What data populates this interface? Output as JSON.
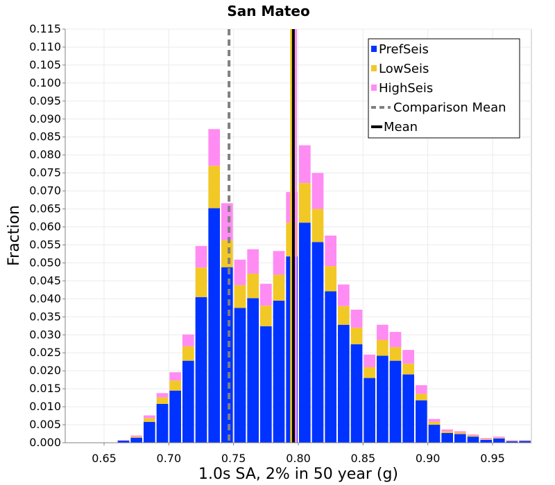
{
  "chart_data": {
    "type": "bar",
    "stacked": true,
    "title": "San Mateo",
    "xlabel": "1.0s SA, 2% in 50 year (g)",
    "ylabel": "Fraction",
    "xlim": [
      0.62,
      0.98
    ],
    "ylim": [
      0.0,
      0.115
    ],
    "x_ticks": [
      "0.65",
      "0.70",
      "0.75",
      "0.80",
      "0.85",
      "0.90",
      "0.95"
    ],
    "x_tick_values": [
      0.65,
      0.7,
      0.75,
      0.8,
      0.85,
      0.9,
      0.95
    ],
    "y_ticks": [
      "0.000",
      "0.005",
      "0.010",
      "0.015",
      "0.020",
      "0.025",
      "0.030",
      "0.035",
      "0.040",
      "0.045",
      "0.050",
      "0.055",
      "0.060",
      "0.065",
      "0.070",
      "0.075",
      "0.080",
      "0.085",
      "0.090",
      "0.095",
      "0.100",
      "0.105",
      "0.110",
      "0.115"
    ],
    "grid": true,
    "legend_position": "top-right",
    "bin_width": 0.01,
    "bin_starts": [
      0.66,
      0.67,
      0.68,
      0.69,
      0.7,
      0.71,
      0.72,
      0.73,
      0.74,
      0.75,
      0.76,
      0.77,
      0.78,
      0.79,
      0.8,
      0.81,
      0.82,
      0.83,
      0.84,
      0.85,
      0.86,
      0.87,
      0.88,
      0.89,
      0.9,
      0.91,
      0.92,
      0.93,
      0.94,
      0.95,
      0.96,
      0.97
    ],
    "series": [
      {
        "name": "PrefSeis",
        "color": "#0033ff",
        "values": [
          0.0006,
          0.0014,
          0.0058,
          0.0108,
          0.0145,
          0.0228,
          0.0405,
          0.0652,
          0.0488,
          0.0375,
          0.0402,
          0.0324,
          0.0395,
          0.0518,
          0.0612,
          0.0558,
          0.0421,
          0.0328,
          0.0274,
          0.018,
          0.0242,
          0.0228,
          0.019,
          0.0118,
          0.005,
          0.0027,
          0.0024,
          0.0017,
          0.0008,
          0.0012,
          0.0004,
          0.0005
        ]
      },
      {
        "name": "LowSeis",
        "color": "#f2c826",
        "values": [
          0.0,
          0.0003,
          0.001,
          0.0018,
          0.0028,
          0.004,
          0.0082,
          0.0118,
          0.0075,
          0.0063,
          0.0068,
          0.0057,
          0.0072,
          0.0094,
          0.011,
          0.0092,
          0.007,
          0.0052,
          0.0046,
          0.003,
          0.0044,
          0.0038,
          0.003,
          0.0018,
          0.0008,
          0.0005,
          0.0004,
          0.0003,
          0.0002,
          0.0002,
          0.0001,
          0.0001
        ]
      },
      {
        "name": "HighSeis",
        "color": "#ff8cf2",
        "values": [
          0.0001,
          0.0003,
          0.0008,
          0.0012,
          0.0023,
          0.0033,
          0.006,
          0.0102,
          0.0103,
          0.0071,
          0.0068,
          0.0061,
          0.0066,
          0.0085,
          0.0105,
          0.01,
          0.0085,
          0.006,
          0.005,
          0.0035,
          0.0042,
          0.0042,
          0.0038,
          0.0024,
          0.0008,
          0.0005,
          0.0004,
          0.0003,
          0.0003,
          0.0003,
          0.0002,
          0.0001
        ]
      }
    ],
    "comparison_mean": {
      "name": "Comparison Mean",
      "x": 0.7465,
      "color": "#808080",
      "style": "dashed"
    },
    "mean": {
      "name": "Mean",
      "x": 0.7962,
      "color": "#000000",
      "style": "solid"
    },
    "mean_low": {
      "x": 0.7945,
      "color": "#f2c826"
    },
    "mean_high": {
      "x": 0.7982,
      "color": "#ff8cf2"
    }
  }
}
